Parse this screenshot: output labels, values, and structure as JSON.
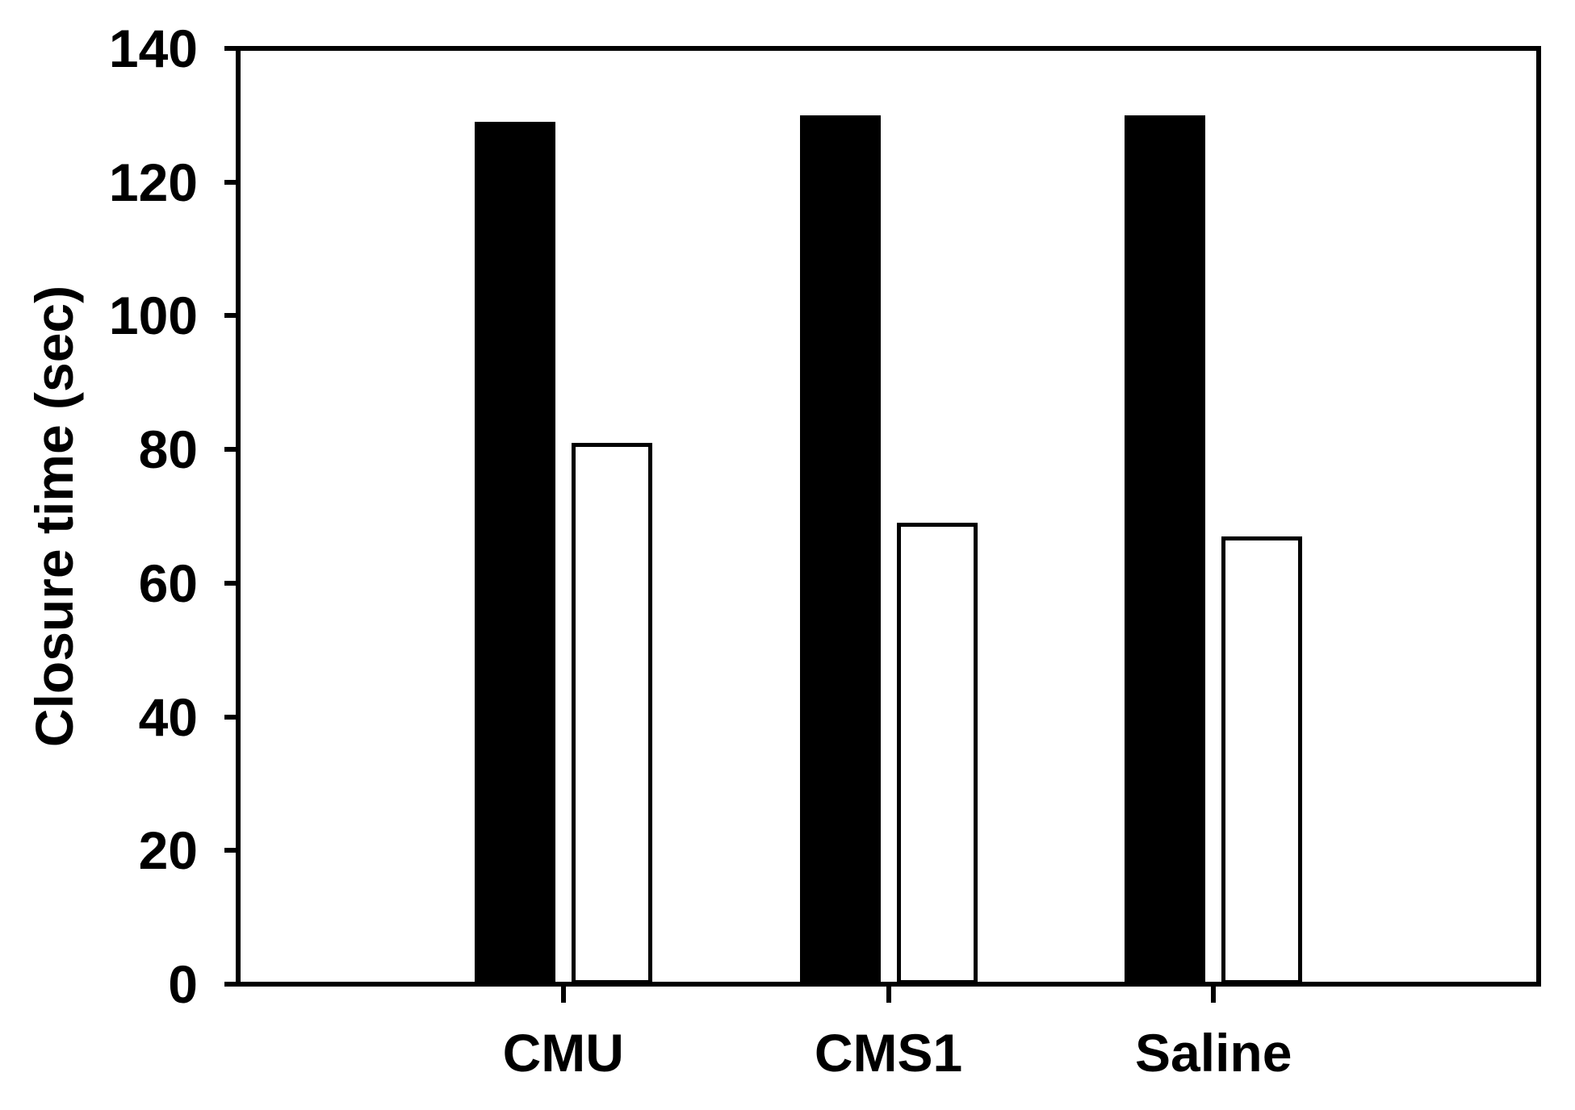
{
  "figure": {
    "background": "#ffffff",
    "stroke_color": "#000000"
  },
  "chart_data": {
    "type": "bar",
    "title": "",
    "xlabel": "",
    "ylabel": "Closure time (sec)",
    "categories": [
      "CMU",
      "CMS1",
      "Saline"
    ],
    "series": [
      {
        "name": "filled-black",
        "fill": "#000000",
        "values": [
          129,
          130,
          130
        ]
      },
      {
        "name": "open-white",
        "fill": "#ffffff",
        "values": [
          81,
          69,
          67
        ]
      }
    ],
    "ylim": [
      0,
      140
    ],
    "yticks": [
      140,
      120,
      100,
      80,
      60,
      40,
      20,
      0
    ],
    "grid": "off",
    "legend": "none"
  }
}
